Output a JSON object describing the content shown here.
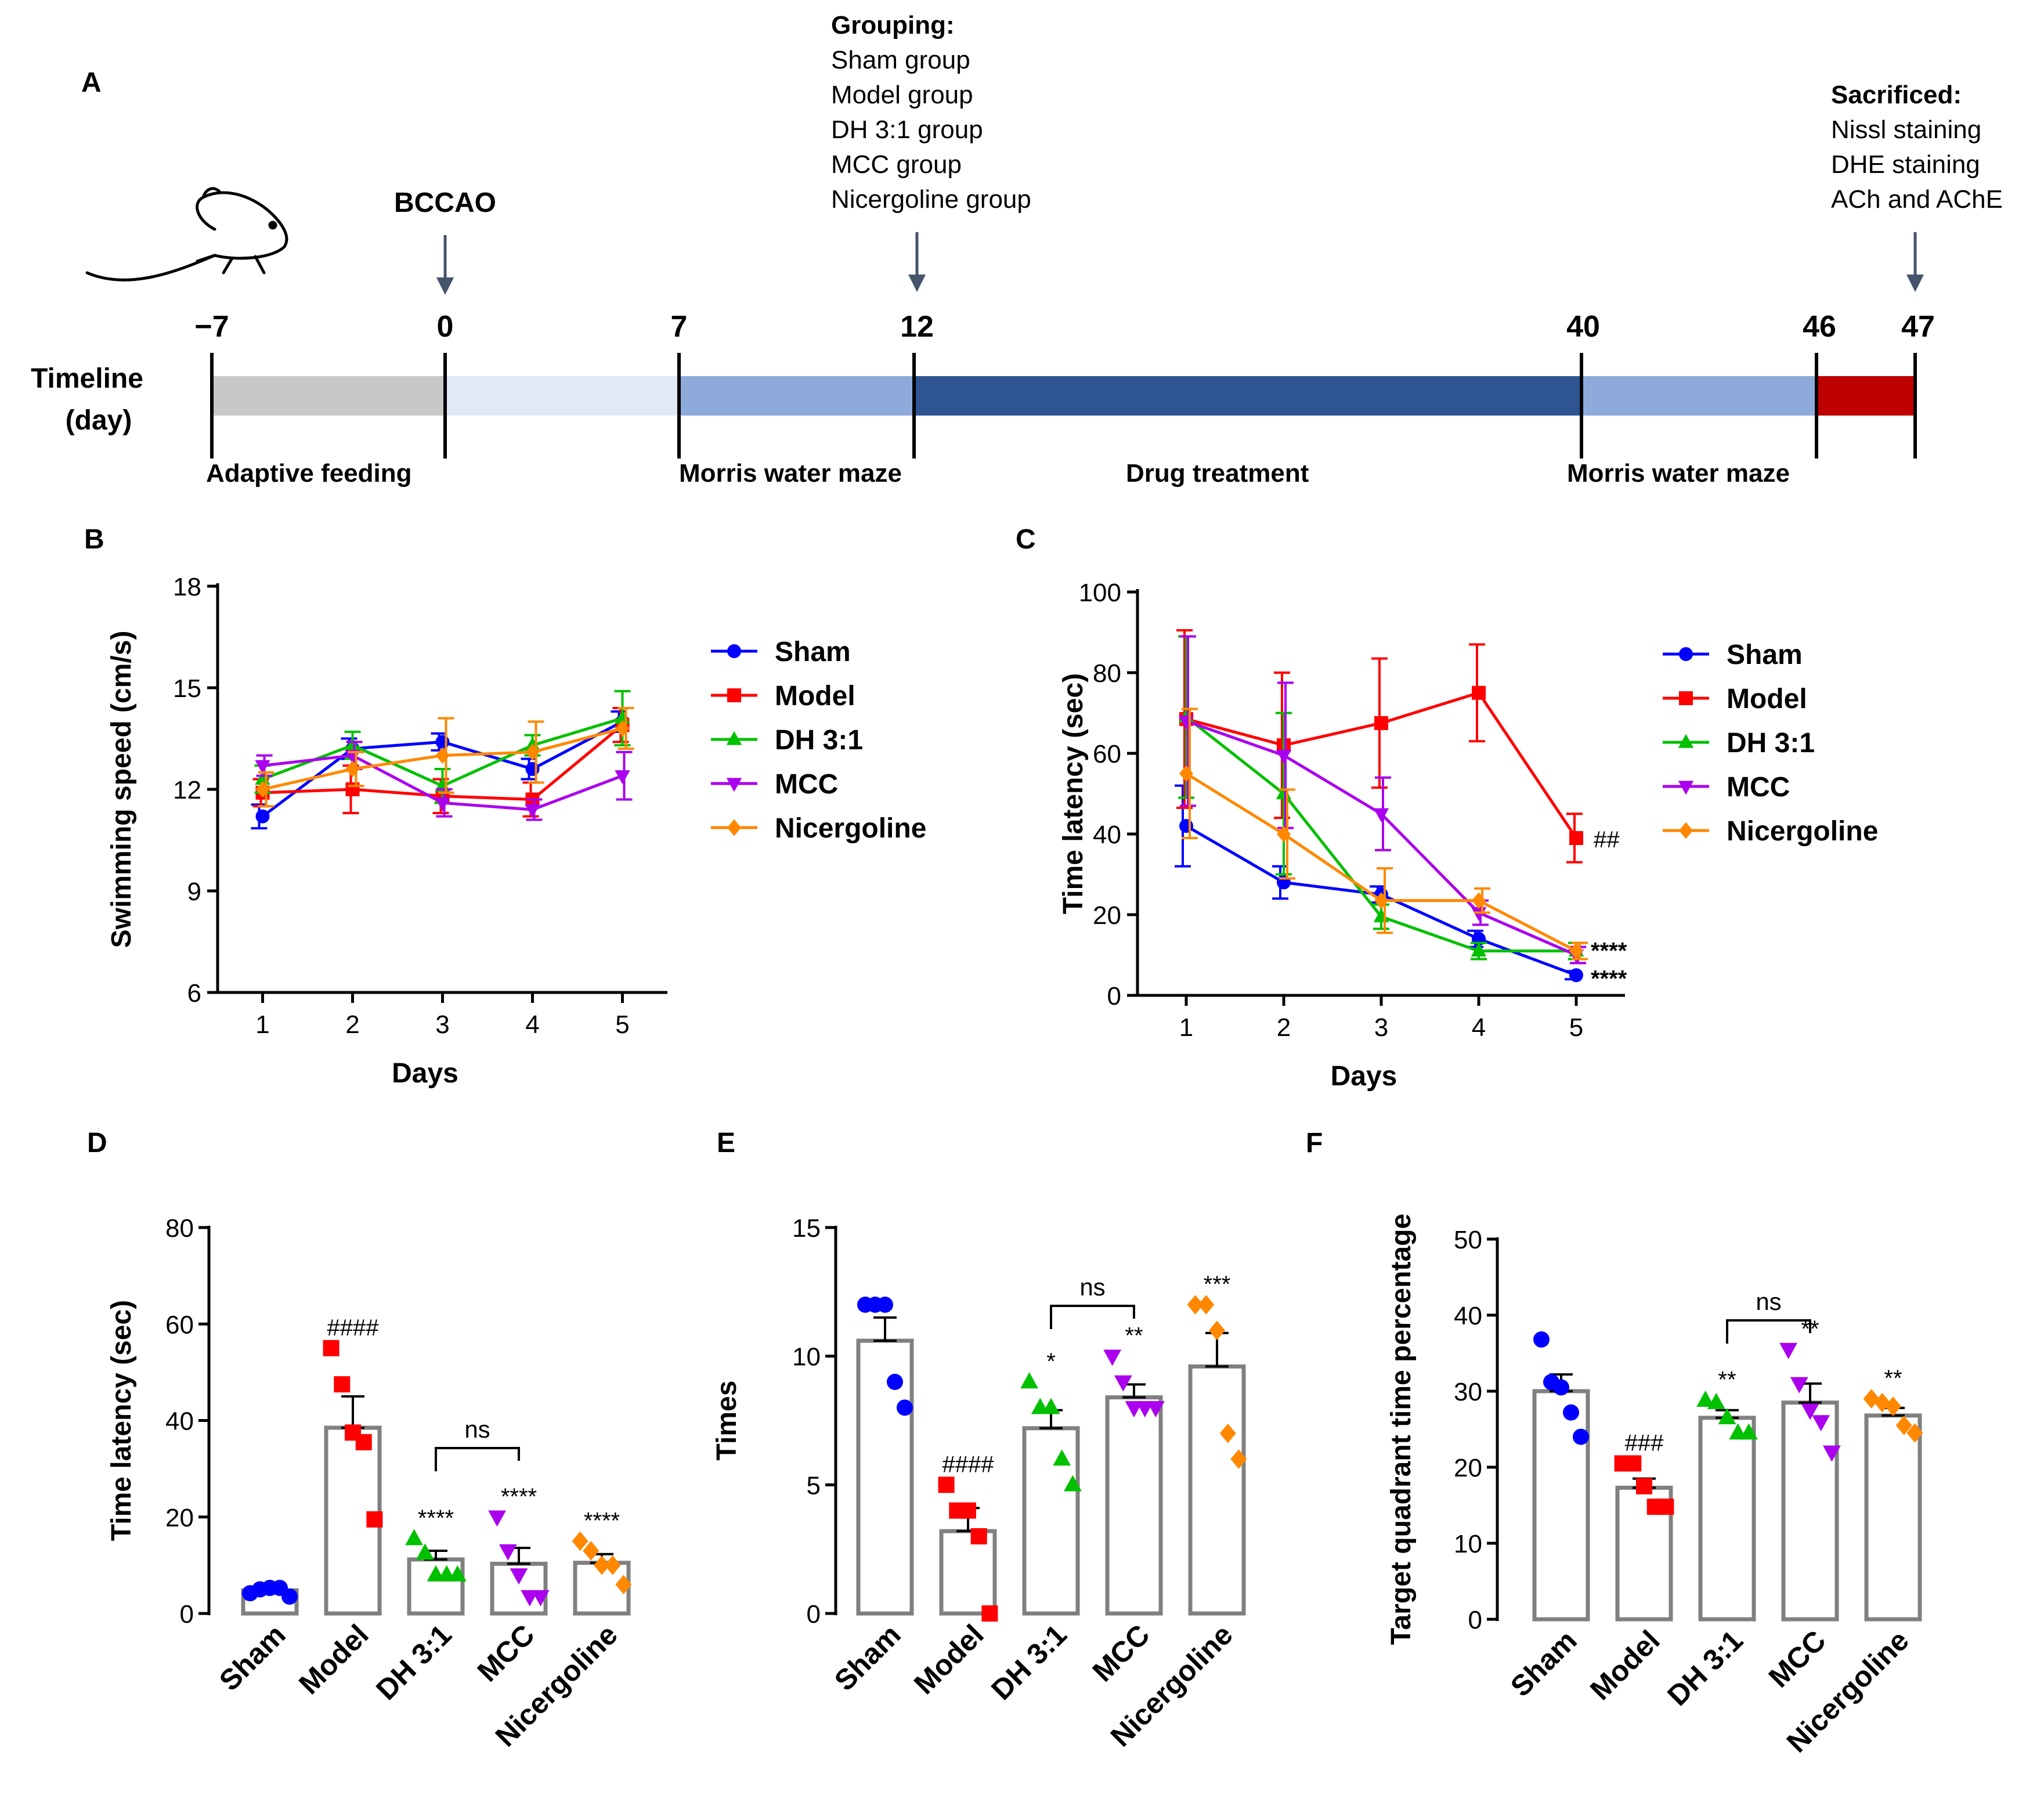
{
  "colors": {
    "sham": "#0000ff",
    "model": "#ff0000",
    "dh": "#00c000",
    "mcc": "#aa00ee",
    "nic": "#ff8800",
    "axis": "#000000",
    "bar": "#808080",
    "tl_grey": "#c8c8c8",
    "tl_pale": "#e1e9f7",
    "tl_mid": "#8eaadb",
    "tl_dark": "#2e5492",
    "tl_red": "#c00000",
    "arrow": "#44546a"
  },
  "panel_labels": {
    "A": "A",
    "B": "B",
    "C": "C",
    "D": "D",
    "E": "E",
    "F": "F"
  },
  "timeline": {
    "label_line1": "Timeline",
    "label_line2": "(day)",
    "ticks": [
      "−7",
      "0",
      "7",
      "12",
      "40",
      "46",
      "47"
    ],
    "bccao": "BCCAO",
    "grouping_title": "Grouping:",
    "grouping_items": [
      "Sham group",
      "Model group",
      "DH 3:1 group",
      "MCC group",
      "Nicergoline group"
    ],
    "sacrificed_title": "Sacrificed:",
    "sacrificed_items": [
      "Nissl staining",
      "DHE staining",
      "ACh and AChE"
    ],
    "phases": [
      "Adaptive feeding",
      "Morris water maze",
      "Drug treatment",
      "Morris water maze"
    ]
  },
  "chart_data": [
    {
      "id": "B",
      "type": "line",
      "title": "",
      "xlabel": "Days",
      "ylabel": "Swimming speed (cm/s)",
      "x": [
        1,
        2,
        3,
        4,
        5
      ],
      "xlim": [
        0.5,
        5.5
      ],
      "ylim": [
        6,
        18
      ],
      "yticks": [
        6,
        9,
        12,
        15,
        18
      ],
      "series": [
        {
          "name": "Sham",
          "values": [
            11.2,
            13.2,
            13.4,
            12.6,
            14.0
          ],
          "errors": [
            0.35,
            0.3,
            0.25,
            0.3,
            0.3
          ]
        },
        {
          "name": "Model",
          "values": [
            11.9,
            12.0,
            11.8,
            11.7,
            13.9
          ],
          "errors": [
            0.4,
            0.7,
            0.5,
            0.5,
            0.5
          ]
        },
        {
          "name": "DH 3:1",
          "values": [
            12.3,
            13.3,
            12.1,
            13.3,
            14.1
          ],
          "errors": [
            0.4,
            0.4,
            0.5,
            0.3,
            0.8
          ]
        },
        {
          "name": "MCC",
          "values": [
            12.7,
            13.0,
            11.6,
            11.4,
            12.4
          ],
          "errors": [
            0.3,
            0.4,
            0.4,
            0.3,
            0.7
          ]
        },
        {
          "name": "Nicergoline",
          "values": [
            12.0,
            12.6,
            13.0,
            13.1,
            13.8
          ],
          "errors": [
            0.5,
            0.5,
            1.1,
            0.9,
            0.6
          ]
        }
      ]
    },
    {
      "id": "C",
      "type": "line",
      "title": "",
      "xlabel": "Days",
      "ylabel": "Time latency (sec)",
      "x": [
        1,
        2,
        3,
        4,
        5
      ],
      "xlim": [
        0.5,
        5.5
      ],
      "ylim": [
        0,
        100
      ],
      "yticks": [
        0,
        20,
        40,
        60,
        80,
        100
      ],
      "series": [
        {
          "name": "Sham",
          "values": [
            42,
            28,
            25,
            14,
            5
          ],
          "errors": [
            10,
            4,
            2,
            2,
            1
          ]
        },
        {
          "name": "Model",
          "values": [
            68.5,
            62,
            67.5,
            75,
            39
          ],
          "errors": [
            22,
            18,
            16,
            12,
            6
          ]
        },
        {
          "name": "DH 3:1",
          "values": [
            69,
            50,
            19.5,
            11,
            11
          ],
          "errors": [
            20,
            20,
            3,
            2,
            2
          ]
        },
        {
          "name": "MCC",
          "values": [
            68,
            59.5,
            45,
            20.5,
            10
          ],
          "errors": [
            21,
            18,
            9,
            3,
            2
          ]
        },
        {
          "name": "Nicergoline",
          "values": [
            55,
            40,
            23.5,
            23.5,
            11
          ],
          "errors": [
            16,
            11,
            8,
            3,
            2
          ]
        }
      ],
      "annotations": [
        {
          "series": "Model",
          "x": 5,
          "text": "##"
        },
        {
          "x": 5,
          "text": "****"
        },
        {
          "x": 5,
          "text": "****"
        }
      ]
    },
    {
      "id": "D",
      "type": "bar",
      "ylabel": "Time latency (sec)",
      "ylim": [
        0,
        80
      ],
      "yticks": [
        0,
        20,
        40,
        60,
        80
      ],
      "categories": [
        "Sham",
        "Model",
        "DH 3:1",
        "MCC",
        "Nicergoline"
      ],
      "values": [
        4.8,
        38.5,
        11.2,
        10.3,
        10.5
      ],
      "errors": [
        0.5,
        6.5,
        1.8,
        3.3,
        1.8
      ],
      "points": [
        [
          4.2,
          5,
          5.3,
          5.3,
          3.5
        ],
        [
          55,
          47.5,
          37.5,
          35.5,
          19.5
        ],
        [
          15.5,
          12.5,
          8,
          8,
          8
        ],
        [
          20,
          13,
          8,
          3.5,
          3.5
        ],
        [
          15,
          13,
          10,
          10,
          6
        ]
      ],
      "annotations": [
        "",
        "####",
        "****",
        "****",
        "****"
      ],
      "comparison": {
        "from": 2,
        "to": 3,
        "text": "ns"
      }
    },
    {
      "id": "E",
      "type": "bar",
      "ylabel": "Times",
      "ylim": [
        0,
        15
      ],
      "yticks": [
        0,
        5,
        10,
        15
      ],
      "categories": [
        "Sham",
        "Model",
        "DH 3:1",
        "MCC",
        "Nicergoline"
      ],
      "values": [
        10.6,
        3.2,
        7.2,
        8.4,
        9.6
      ],
      "errors": [
        0.9,
        0.9,
        0.7,
        0.5,
        1.3
      ],
      "points": [
        [
          12,
          12,
          12,
          9,
          8
        ],
        [
          5,
          4,
          4,
          3,
          0
        ],
        [
          9,
          8,
          8,
          6,
          5
        ],
        [
          10,
          9,
          8,
          8,
          8
        ],
        [
          12,
          12,
          11,
          7,
          6
        ]
      ],
      "annotations": [
        "",
        "####",
        "*",
        "**",
        "***"
      ],
      "comparison": {
        "from": 2,
        "to": 3,
        "text": "ns"
      }
    },
    {
      "id": "F",
      "type": "bar",
      "ylabel": "Target quadrant time percentage",
      "ylim": [
        0,
        50
      ],
      "yticks": [
        0,
        10,
        20,
        30,
        40,
        50
      ],
      "categories": [
        "Sham",
        "Model",
        "DH 3:1",
        "MCC",
        "Nicergoline"
      ],
      "values": [
        30,
        17.3,
        26.5,
        28.5,
        26.8
      ],
      "errors": [
        2.2,
        1.2,
        1.0,
        2.5,
        1.0
      ],
      "points": [
        [
          36.8,
          31.2,
          30.5,
          27.2,
          24
        ],
        [
          20.5,
          20.5,
          17.5,
          14.8,
          14.8
        ],
        [
          28.8,
          28.5,
          26.5,
          24.5,
          24.5
        ],
        [
          35.5,
          31,
          27.5,
          26,
          22
        ],
        [
          29,
          28.5,
          28,
          25.5,
          24.5
        ]
      ],
      "annotations": [
        "",
        "###",
        "**",
        "**",
        "**"
      ],
      "comparison": {
        "from": 2,
        "to": 3,
        "text": "ns"
      }
    }
  ]
}
